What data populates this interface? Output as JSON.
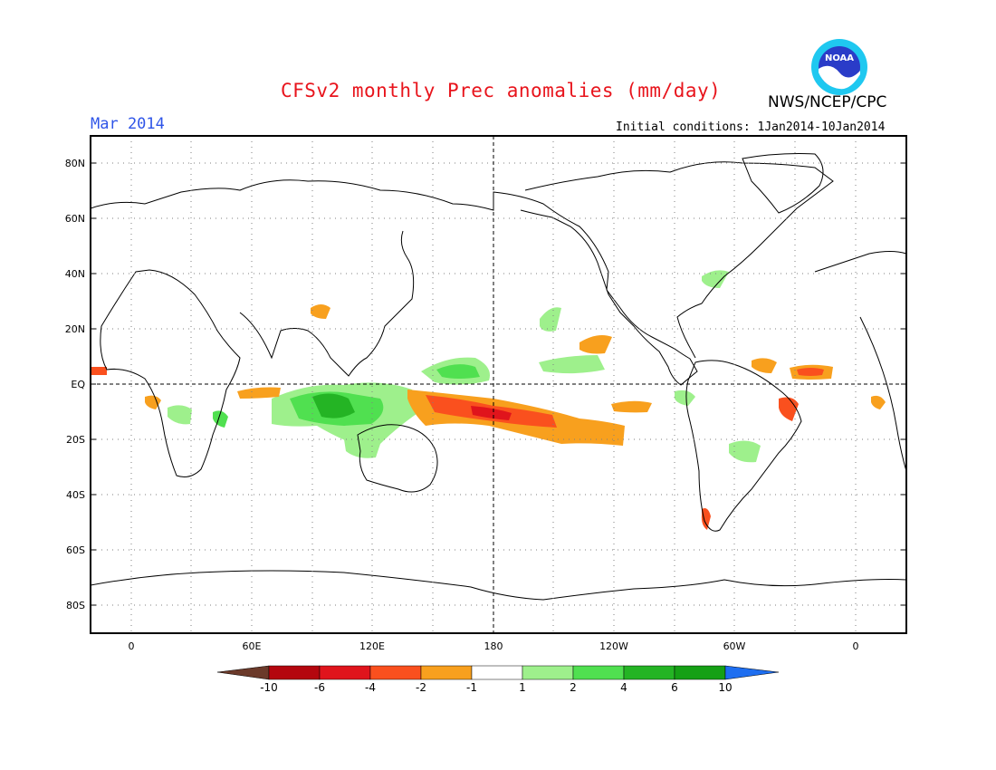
{
  "header": {
    "title": "CFSv2 monthly Prec anomalies (mm/day)",
    "agency": "NWS/NCEP/CPC",
    "logo_text": "NOAA",
    "valid_month": "Mar 2014",
    "initial_conditions": "Initial conditions: 1Jan2014-10Jan2014"
  },
  "map": {
    "lat_labels": [
      "80N",
      "60N",
      "40N",
      "20N",
      "EQ",
      "20S",
      "40S",
      "60S",
      "80S"
    ],
    "lon_labels": [
      "0",
      "60E",
      "120E",
      "180",
      "120W",
      "60W",
      "0"
    ],
    "colors": {
      "frame": "#000000",
      "coast": "#000000",
      "grid": "#7f7f7f"
    }
  },
  "colorbar": {
    "bins": [
      {
        "color": "#6b3a2a"
      },
      {
        "color": "#b4060e"
      },
      {
        "color": "#e0141c"
      },
      {
        "color": "#fa501e"
      },
      {
        "color": "#f8a01e"
      },
      {
        "color": "#ffffff"
      },
      {
        "color": "#9ef08c"
      },
      {
        "color": "#50e050"
      },
      {
        "color": "#24b424"
      },
      {
        "color": "#15a015"
      },
      {
        "color": "#1e6ef0"
      }
    ],
    "labels": [
      "-10",
      "-6",
      "-4",
      "-2",
      "-1",
      "1",
      "2",
      "4",
      "6",
      "10"
    ]
  }
}
